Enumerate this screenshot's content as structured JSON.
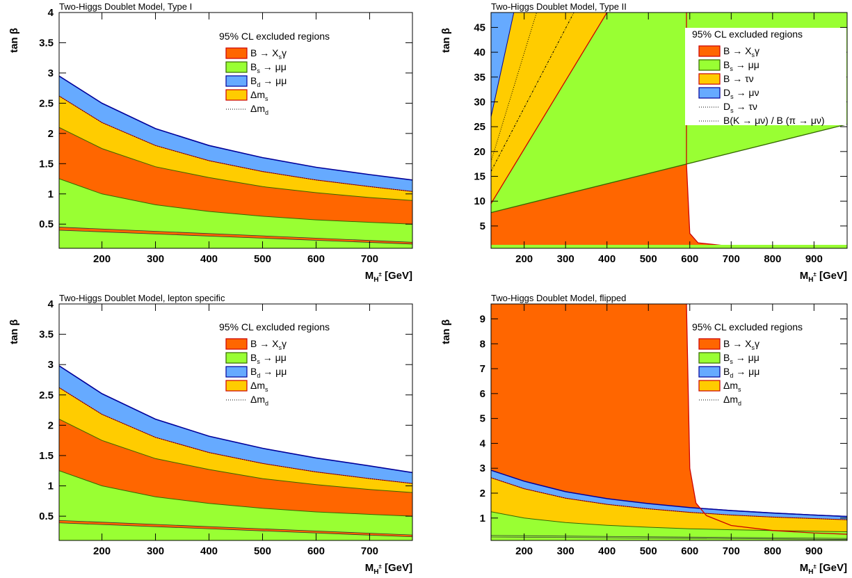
{
  "colors": {
    "orange": "#ff6600",
    "green": "#99ff33",
    "blue": "#66aaff",
    "yellow": "#ffcc00",
    "red_line": "#cc0000",
    "blue_line": "#000099",
    "green_line": "#336600"
  },
  "chart_data": [
    {
      "id": "type1",
      "type": "area",
      "title": "Two-Higgs Doublet Model, Type I",
      "xlabel_main": "M",
      "xlabel_sub": "H",
      "xlabel_sup": "±",
      "xlabel_unit": "[GeV]",
      "ylabel": "tan β",
      "xlim": [
        120,
        780
      ],
      "ylim": [
        0.1,
        4
      ],
      "xticks": [
        "200",
        "300",
        "400",
        "500",
        "600",
        "700"
      ],
      "yticks": [
        "0.5",
        "1",
        "1.5",
        "2",
        "2.5",
        "3",
        "3.5",
        "4"
      ],
      "legend_header": "95% CL excluded regions",
      "legend": [
        {
          "key": "bxs",
          "label": "B → X",
          "sub": "s",
          "tail": "γ",
          "color": "orange"
        },
        {
          "key": "bsmm",
          "label": "B",
          "sub": "s",
          "tail": " → μμ",
          "color": "green"
        },
        {
          "key": "bdmm",
          "label": "B",
          "sub": "d",
          "tail": " → μμ",
          "color": "blue"
        },
        {
          "key": "dms",
          "label": "Δm",
          "sub": "s",
          "tail": "",
          "color": "yellow"
        },
        {
          "key": "dmd",
          "label": "Δm",
          "sub": "d",
          "tail": "",
          "color": "dotted"
        }
      ],
      "bands": [
        {
          "color": "green",
          "x": [
            120,
            200,
            300,
            400,
            500,
            600,
            700,
            780
          ],
          "y": [
            1.25,
            1.0,
            0.82,
            0.71,
            0.63,
            0.57,
            0.53,
            0.5
          ]
        },
        {
          "color": "orange",
          "x": [
            120,
            200,
            300,
            400,
            500,
            600,
            700,
            780
          ],
          "y": [
            2.1,
            1.75,
            1.45,
            1.27,
            1.12,
            1.02,
            0.94,
            0.89
          ]
        },
        {
          "color": "yellow",
          "x": [
            120,
            200,
            300,
            400,
            500,
            600,
            700,
            780
          ],
          "y": [
            2.62,
            2.18,
            1.8,
            1.55,
            1.37,
            1.23,
            1.12,
            1.04
          ]
        },
        {
          "color": "blue",
          "x": [
            120,
            200,
            300,
            400,
            500,
            600,
            700,
            780
          ],
          "y": [
            2.95,
            2.5,
            2.08,
            1.8,
            1.6,
            1.44,
            1.32,
            1.23
          ]
        }
      ],
      "lower_band": {
        "x": [
          120,
          780
        ],
        "y_top": [
          0.45,
          0.2
        ],
        "y_bot": [
          0.4,
          0.17
        ]
      }
    },
    {
      "id": "type2",
      "type": "area",
      "title": "Two-Higgs Doublet Model, Type II",
      "xlabel_main": "M",
      "xlabel_sub": "H",
      "xlabel_sup": "±",
      "xlabel_unit": "[GeV]",
      "ylabel": "tan β",
      "xlim": [
        120,
        980
      ],
      "ylim": [
        0.5,
        48
      ],
      "xticks": [
        "200",
        "300",
        "400",
        "500",
        "600",
        "700",
        "800",
        "900"
      ],
      "yticks": [
        "5",
        "10",
        "15",
        "20",
        "25",
        "30",
        "35",
        "40",
        "45"
      ],
      "legend_header": "95% CL excluded regions",
      "legend": [
        {
          "key": "bxs",
          "label": "B → X",
          "sub": "s",
          "tail": "γ",
          "color": "orange"
        },
        {
          "key": "bsmm",
          "label": "B",
          "sub": "s",
          "tail": " → μμ",
          "color": "green"
        },
        {
          "key": "btn",
          "label": "B → τν",
          "sub": "",
          "tail": "",
          "color": "yellow"
        },
        {
          "key": "dsmn",
          "label": "D",
          "sub": "s",
          "tail": " → μν",
          "color": "blue"
        },
        {
          "key": "dstn",
          "label": "D",
          "sub": "s",
          "tail": " → τν",
          "color": "dotted"
        },
        {
          "key": "kmn",
          "label": "B(K → μν) / B (π → μν)",
          "sub": "",
          "tail": "",
          "color": "dotted"
        }
      ],
      "bsmm_line": {
        "x": [
          120,
          980
        ],
        "y": [
          7.7,
          25.5
        ]
      },
      "btn_line": {
        "x": [
          120,
          400
        ],
        "y": [
          9.5,
          48
        ]
      },
      "bxs_edge_x": 592,
      "bxs_tail": {
        "x": [
          592,
          600,
          620,
          700,
          800,
          900,
          980
        ],
        "y": [
          17.5,
          3.5,
          1.6,
          0.9,
          0.7,
          0.6,
          0.55
        ]
      },
      "ds_blue": {
        "x": [
          120,
          175,
          120
        ],
        "y": [
          27,
          48,
          48
        ]
      },
      "dotted_lines": [
        {
          "x": [
            120,
            230
          ],
          "y": [
            18,
            48
          ]
        },
        {
          "x": [
            120,
            320
          ],
          "y": [
            16,
            48
          ]
        }
      ]
    },
    {
      "id": "lepton",
      "type": "area",
      "title": "Two-Higgs Doublet Model, lepton specific",
      "xlabel_main": "M",
      "xlabel_sub": "H",
      "xlabel_sup": "±",
      "xlabel_unit": "[GeV]",
      "ylabel": "tan β",
      "xlim": [
        120,
        780
      ],
      "ylim": [
        0.1,
        4
      ],
      "xticks": [
        "200",
        "300",
        "400",
        "500",
        "600",
        "700"
      ],
      "yticks": [
        "0.5",
        "1",
        "1.5",
        "2",
        "2.5",
        "3",
        "3.5",
        "4"
      ],
      "legend_header": "95% CL excluded regions",
      "legend": [
        {
          "key": "bxs",
          "label": "B → X",
          "sub": "s",
          "tail": "γ",
          "color": "orange"
        },
        {
          "key": "bsmm",
          "label": "B",
          "sub": "s",
          "tail": " → μμ",
          "color": "green"
        },
        {
          "key": "bdmm",
          "label": "B",
          "sub": "d",
          "tail": " → μμ",
          "color": "blue"
        },
        {
          "key": "dms",
          "label": "Δm",
          "sub": "s",
          "tail": "",
          "color": "yellow"
        },
        {
          "key": "dmd",
          "label": "Δm",
          "sub": "d",
          "tail": "",
          "color": "dotted"
        }
      ],
      "bands": [
        {
          "color": "green",
          "x": [
            120,
            200,
            300,
            400,
            500,
            600,
            700,
            780
          ],
          "y": [
            1.25,
            1.0,
            0.82,
            0.71,
            0.63,
            0.57,
            0.53,
            0.5
          ]
        },
        {
          "color": "orange",
          "x": [
            120,
            200,
            300,
            400,
            500,
            600,
            700,
            780
          ],
          "y": [
            2.1,
            1.75,
            1.45,
            1.27,
            1.12,
            1.02,
            0.94,
            0.89
          ]
        },
        {
          "color": "yellow",
          "x": [
            120,
            200,
            300,
            400,
            500,
            600,
            700,
            780
          ],
          "y": [
            2.62,
            2.18,
            1.8,
            1.55,
            1.37,
            1.23,
            1.12,
            1.04
          ]
        },
        {
          "color": "blue",
          "x": [
            120,
            200,
            300,
            400,
            500,
            600,
            700,
            780
          ],
          "y": [
            2.98,
            2.52,
            2.1,
            1.82,
            1.62,
            1.46,
            1.33,
            1.22
          ]
        }
      ],
      "lower_band": {
        "x": [
          120,
          780
        ],
        "y_top": [
          0.43,
          0.19
        ],
        "y_bot": [
          0.39,
          0.16
        ]
      }
    },
    {
      "id": "flipped",
      "type": "area",
      "title": "Two-Higgs Doublet Model, flipped",
      "xlabel_main": "M",
      "xlabel_sub": "H",
      "xlabel_sup": "±",
      "xlabel_unit": "[GeV]",
      "ylabel": "tan β",
      "xlim": [
        120,
        980
      ],
      "ylim": [
        0.1,
        9.6
      ],
      "xticks": [
        "200",
        "300",
        "400",
        "500",
        "600",
        "700",
        "800",
        "900"
      ],
      "yticks": [
        "1",
        "2",
        "3",
        "4",
        "5",
        "6",
        "7",
        "8",
        "9"
      ],
      "legend_header": "95% CL excluded regions",
      "legend": [
        {
          "key": "bxs",
          "label": "B → X",
          "sub": "s",
          "tail": "γ",
          "color": "orange"
        },
        {
          "key": "bsmm",
          "label": "B",
          "sub": "s",
          "tail": " → μμ",
          "color": "green"
        },
        {
          "key": "bdmm",
          "label": "B",
          "sub": "d",
          "tail": " → μμ",
          "color": "blue"
        },
        {
          "key": "dms",
          "label": "Δm",
          "sub": "s",
          "tail": "",
          "color": "yellow"
        },
        {
          "key": "dmd",
          "label": "Δm",
          "sub": "d",
          "tail": "",
          "color": "dotted"
        }
      ],
      "bands": [
        {
          "color": "green",
          "x": [
            120,
            200,
            300,
            400,
            500,
            600,
            700,
            800,
            900,
            980
          ],
          "y": [
            1.25,
            1.0,
            0.82,
            0.71,
            0.63,
            0.57,
            0.53,
            0.5,
            0.47,
            0.45
          ]
        },
        {
          "color": "yellow",
          "x": [
            120,
            200,
            300,
            400,
            500,
            600,
            700,
            800,
            900,
            980
          ],
          "y": [
            2.62,
            2.18,
            1.8,
            1.55,
            1.37,
            1.23,
            1.12,
            1.04,
            0.98,
            0.93
          ]
        },
        {
          "color": "blue",
          "x": [
            120,
            200,
            300,
            400,
            500,
            600,
            700,
            800,
            900,
            980
          ],
          "y": [
            2.92,
            2.48,
            2.06,
            1.78,
            1.58,
            1.42,
            1.3,
            1.2,
            1.12,
            1.06
          ]
        }
      ],
      "bxs_edge_x": 592,
      "bxs_tail": {
        "x": [
          592,
          600,
          615,
          640,
          700,
          800,
          900,
          980
        ],
        "y": [
          9.6,
          3.0,
          1.6,
          1.1,
          0.7,
          0.5,
          0.4,
          0.35
        ]
      },
      "lower_band": {
        "x": [
          120,
          980
        ],
        "y_top": [
          0.3,
          0.18
        ],
        "y_bot": [
          0.24,
          0.14
        ]
      }
    }
  ]
}
